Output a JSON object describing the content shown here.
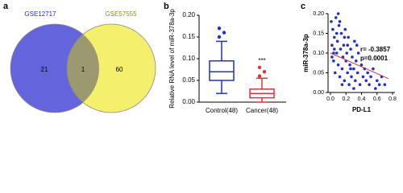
{
  "chart_data": [
    {
      "type": "venn",
      "panel_label": "a",
      "sets": [
        {
          "name": "GSE12717",
          "color": "#6464dc",
          "text_color": "#2a2ac0"
        },
        {
          "name": "GSE57555",
          "color": "#f4f06e",
          "text_color": "#8a8a20"
        }
      ],
      "overlap_color": "#9c9870",
      "values": [
        21,
        1,
        60
      ]
    },
    {
      "type": "box",
      "panel_label": "b",
      "ylabel": "Relative RNA level of miR-378a-3p",
      "categories": [
        "Control(48)",
        "Cancer(48)"
      ],
      "annotation": "***",
      "ylim": [
        0,
        0.2
      ],
      "yticks": [
        {
          "value": 0,
          "label": "0.00"
        },
        {
          "value": 0.05,
          "label": "0.05"
        },
        {
          "value": 0.1,
          "label": "0.10"
        },
        {
          "value": 0.15,
          "label": "0.15"
        },
        {
          "value": 0.2,
          "label": "0.20"
        }
      ],
      "boxes": [
        {
          "color": "#1f2fd0",
          "whisker_low": 0.02,
          "q1": 0.05,
          "median": 0.07,
          "q3": 0.095,
          "whisker_high": 0.14,
          "outliers": [
            0.15,
            0.16,
            0.17
          ]
        },
        {
          "color": "#e0303a",
          "whisker_low": 0.0,
          "q1": 0.01,
          "median": 0.02,
          "q3": 0.03,
          "whisker_high": 0.055,
          "outliers": [
            0.06,
            0.07,
            0.08
          ]
        }
      ]
    },
    {
      "type": "scatter",
      "panel_label": "c",
      "xlabel": "PD-L1",
      "ylabel": "miR-378a-3p",
      "annotations": [
        "r= -0.3857",
        "p=0.0001"
      ],
      "color": "#1f2fd0",
      "fit_color": "#e0303a",
      "xlim": [
        0,
        0.8
      ],
      "ylim": [
        0,
        0.2
      ],
      "xticks": [
        {
          "value": 0,
          "label": "0.0"
        },
        0.2,
        0.4,
        0.6,
        0.8
      ],
      "yticks": [
        {
          "value": 0,
          "label": "0.00"
        },
        {
          "value": 0.05,
          "label": "0.05"
        },
        {
          "value": 0.1,
          "label": "0.10"
        },
        {
          "value": 0.15,
          "label": "0.15"
        },
        {
          "value": 0.2,
          "label": "0.20"
        }
      ],
      "x": [
        0.01,
        0.02,
        0.03,
        0.04,
        0.05,
        0.06,
        0.07,
        0.08,
        0.09,
        0.1,
        0.11,
        0.12,
        0.13,
        0.14,
        0.15,
        0.16,
        0.17,
        0.18,
        0.19,
        0.2,
        0.21,
        0.22,
        0.23,
        0.24,
        0.25,
        0.26,
        0.27,
        0.28,
        0.3,
        0.31,
        0.32,
        0.33,
        0.35,
        0.36,
        0.38,
        0.4,
        0.42,
        0.44,
        0.46,
        0.48,
        0.5,
        0.52,
        0.55,
        0.58,
        0.6,
        0.63,
        0.66,
        0.7,
        0.02,
        0.05,
        0.08,
        0.12,
        0.15,
        0.18,
        0.22,
        0.26,
        0.3,
        0.34,
        0.04,
        0.1
      ],
      "y": [
        0.18,
        0.12,
        0.16,
        0.08,
        0.14,
        0.05,
        0.19,
        0.1,
        0.13,
        0.07,
        0.17,
        0.04,
        0.11,
        0.15,
        0.06,
        0.09,
        0.12,
        0.03,
        0.16,
        0.08,
        0.1,
        0.05,
        0.14,
        0.02,
        0.07,
        0.11,
        0.04,
        0.09,
        0.06,
        0.13,
        0.03,
        0.08,
        0.05,
        0.1,
        0.02,
        0.07,
        0.04,
        0.06,
        0.03,
        0.05,
        0.02,
        0.04,
        0.06,
        0.01,
        0.03,
        0.02,
        0.04,
        0.02,
        0.09,
        0.11,
        0.15,
        0.18,
        0.02,
        0.14,
        0.12,
        0.06,
        0.01,
        0.12,
        0.1,
        0.2
      ],
      "fit": {
        "x": [
          0,
          0.75
        ],
        "y": [
          0.1,
          0.035
        ]
      }
    }
  ]
}
